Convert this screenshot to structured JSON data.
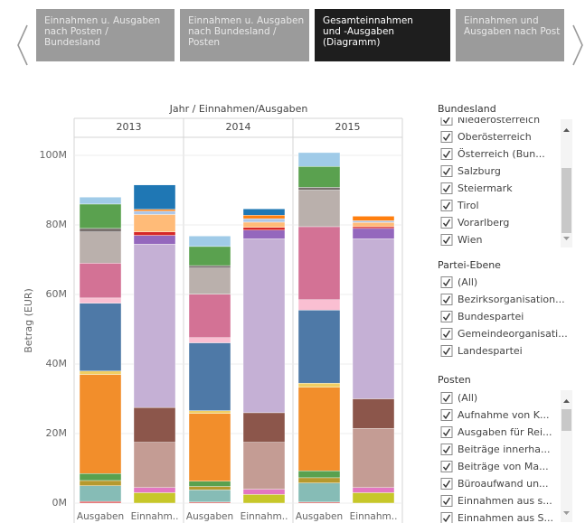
{
  "tabs": [
    "Einnahmen u. Ausgaben nach Posten / Bundesland",
    "Einnahmen u. Ausgaben nach Bundesland / Posten",
    "Gesamteinnahmen und -Ausgaben (Diagramm)",
    "Einnahmen und Ausgaben nach Post"
  ],
  "chart_data": {
    "type": "stacked_bar",
    "column_header": "Jahr / Einnahmen/Ausgaben",
    "years": [
      "2013",
      "2014",
      "2015"
    ],
    "categories": [
      "Ausgaben",
      "Einnahm..",
      "Ausgaben",
      "Einnahm..",
      "Ausgaben",
      "Einnahm.."
    ],
    "y_label": "Betrag (EUR)",
    "ylim": [
      -2.6,
      105.2
    ],
    "yticks": [
      {
        "value": 0,
        "label": "0M"
      },
      {
        "value": 20,
        "label": "20M"
      },
      {
        "value": 40,
        "label": "40M"
      },
      {
        "value": 60,
        "label": "60M"
      },
      {
        "value": 80,
        "label": "80M"
      },
      {
        "value": 100,
        "label": "100M"
      }
    ],
    "grid": true,
    "series": [
      {
        "color": "#e15759",
        "values": [
          0.5,
          null,
          0.3,
          null,
          0.3,
          null
        ]
      },
      {
        "color": "#86bcb6",
        "values": [
          4.5,
          null,
          3.5,
          null,
          5.5,
          null
        ]
      },
      {
        "color": "#b6992d",
        "values": [
          1.5,
          null,
          1,
          null,
          1.5,
          null
        ]
      },
      {
        "color": "#59a14f",
        "values": [
          2,
          null,
          1.5,
          null,
          2,
          null
        ]
      },
      {
        "color": "#f28e2b",
        "values": [
          28.5,
          null,
          19.5,
          null,
          24,
          null
        ]
      },
      {
        "color": "#f1ce63",
        "values": [
          1,
          null,
          0.8,
          null,
          1.2,
          null
        ]
      },
      {
        "color": "#4e79a7",
        "values": [
          19.5,
          null,
          19.5,
          null,
          21,
          null
        ]
      },
      {
        "color": "#fabfd2",
        "values": [
          1.5,
          null,
          1.5,
          null,
          3,
          null
        ]
      },
      {
        "color": "#d37295",
        "values": [
          10,
          null,
          12.5,
          null,
          21,
          null
        ]
      },
      {
        "color": "#bab0ac",
        "values": [
          9,
          null,
          7.5,
          null,
          10.5,
          null
        ]
      },
      {
        "color": "#79706e",
        "values": [
          1,
          null,
          0.7,
          null,
          0.8,
          null
        ]
      },
      {
        "color": "#5aa14f",
        "values": [
          7,
          null,
          5.5,
          null,
          6,
          null
        ]
      },
      {
        "color": "#a0cbe8",
        "values": [
          2,
          null,
          3,
          null,
          4,
          null
        ]
      },
      {
        "color": "#c7c72a",
        "values": [
          null,
          3,
          null,
          2.5,
          null,
          3
        ]
      },
      {
        "color": "#e377c2",
        "values": [
          null,
          1.5,
          null,
          1.5,
          null,
          1.5
        ]
      },
      {
        "color": "#c49c94",
        "values": [
          null,
          13,
          null,
          13.5,
          null,
          17
        ]
      },
      {
        "color": "#8c564b",
        "values": [
          null,
          10,
          null,
          8.5,
          null,
          8.5
        ]
      },
      {
        "color": "#c5b0d5",
        "values": [
          null,
          47,
          null,
          50,
          null,
          46
        ]
      },
      {
        "color": "#9467bd",
        "values": [
          null,
          2.5,
          null,
          2.5,
          null,
          3
        ]
      },
      {
        "color": "#d62728",
        "values": [
          null,
          1,
          null,
          0.8,
          null,
          0.5
        ]
      },
      {
        "color": "#ffbb78",
        "values": [
          null,
          5,
          null,
          1.5,
          null,
          1.2
        ]
      },
      {
        "color": "#aec7e8",
        "values": [
          null,
          1,
          null,
          1,
          null,
          0.5
        ]
      },
      {
        "color": "#ff7f0e",
        "values": [
          null,
          0.5,
          null,
          1,
          null,
          1.3
        ]
      },
      {
        "color": "#1f77b4",
        "values": [
          null,
          7,
          null,
          1.8,
          null,
          null
        ]
      }
    ]
  },
  "filters": [
    {
      "title": "Bundesland",
      "items": [
        "Niederösterreich",
        "Oberösterreich",
        "Österreich (Bun...",
        "Salzburg",
        "Steiermark",
        "Tirol",
        "Vorarlberg",
        "Wien"
      ]
    },
    {
      "title": "Partei-Ebene",
      "items": [
        "(All)",
        "Bezirksorganisation...",
        "Bundespartei",
        "Gemeindeorganisati...",
        "Landespartei"
      ]
    },
    {
      "title": "Posten",
      "items": [
        "(All)",
        "Aufnahme von K...",
        "Ausgaben für Rei...",
        "Beiträge innerha...",
        "Beiträge von Ma...",
        "Büroaufwand un...",
        "Einnahmen aus s...",
        "Einnahmen aus S..."
      ]
    }
  ]
}
